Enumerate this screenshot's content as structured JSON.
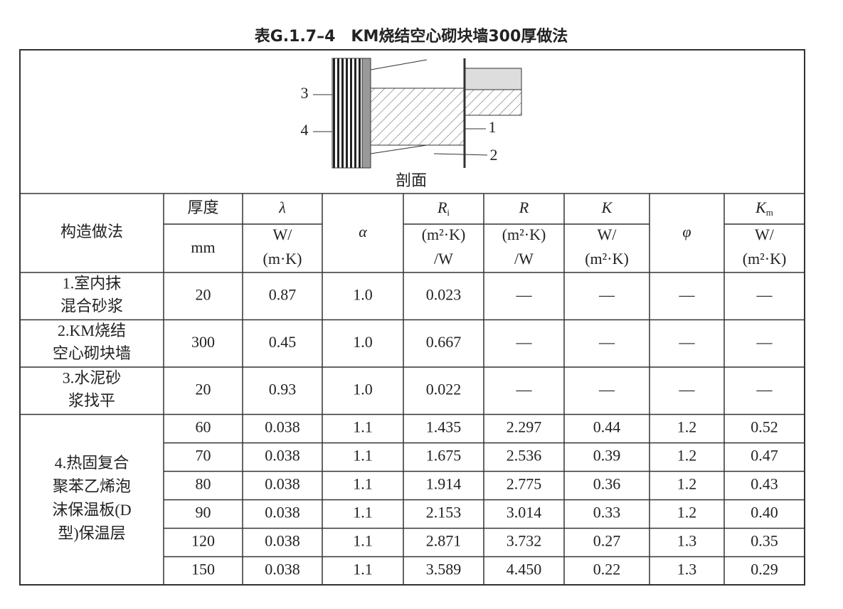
{
  "title": "表G.1.7–4　KM烧结空心砌块墙300厚做法",
  "diagram": {
    "caption": "剖面",
    "labels": [
      "1",
      "2",
      "3",
      "4"
    ]
  },
  "table": {
    "header": [
      {
        "symbol": "构造做法"
      },
      {
        "symbol": "厚度",
        "unit": [
          "mm"
        ]
      },
      {
        "symbol": "λ",
        "unit": [
          "W/",
          "(m·K)"
        ]
      },
      {
        "symbol": "α"
      },
      {
        "symbol": "R",
        "sub": "i",
        "unit": [
          "(m²·K)",
          "/W"
        ]
      },
      {
        "symbol": "R",
        "unit": [
          "(m²·K)",
          "/W"
        ]
      },
      {
        "symbol": "K",
        "unit": [
          "W/",
          "(m²·K)"
        ]
      },
      {
        "symbol": "φ"
      },
      {
        "symbol": "K",
        "sub": "m",
        "unit": [
          "W/",
          "(m²·K)"
        ]
      }
    ],
    "rows": [
      {
        "name": [
          "1.室内抹",
          "混合砂浆"
        ],
        "values": [
          [
            "20",
            "0.87",
            "1.0",
            "0.023",
            "—",
            "—",
            "—",
            "—"
          ]
        ]
      },
      {
        "name": [
          "2.KM烧结",
          "空心砌块墙"
        ],
        "values": [
          [
            "300",
            "0.45",
            "1.0",
            "0.667",
            "—",
            "—",
            "—",
            "—"
          ]
        ]
      },
      {
        "name": [
          "3.水泥砂",
          "浆找平"
        ],
        "values": [
          [
            "20",
            "0.93",
            "1.0",
            "0.022",
            "—",
            "—",
            "—",
            "—"
          ]
        ]
      },
      {
        "name": [
          "4.热固复合",
          "聚苯乙烯泡",
          "沫保温板(D",
          "型)保温层"
        ],
        "values": [
          [
            "60",
            "0.038",
            "1.1",
            "1.435",
            "2.297",
            "0.44",
            "1.2",
            "0.52"
          ],
          [
            "70",
            "0.038",
            "1.1",
            "1.675",
            "2.536",
            "0.39",
            "1.2",
            "0.47"
          ],
          [
            "80",
            "0.038",
            "1.1",
            "1.914",
            "2.775",
            "0.36",
            "1.2",
            "0.43"
          ],
          [
            "90",
            "0.038",
            "1.1",
            "2.153",
            "3.014",
            "0.33",
            "1.2",
            "0.40"
          ],
          [
            "120",
            "0.038",
            "1.1",
            "2.871",
            "3.732",
            "0.27",
            "1.3",
            "0.35"
          ],
          [
            "150",
            "0.038",
            "1.1",
            "3.589",
            "4.450",
            "0.22",
            "1.3",
            "0.29"
          ]
        ]
      }
    ]
  }
}
